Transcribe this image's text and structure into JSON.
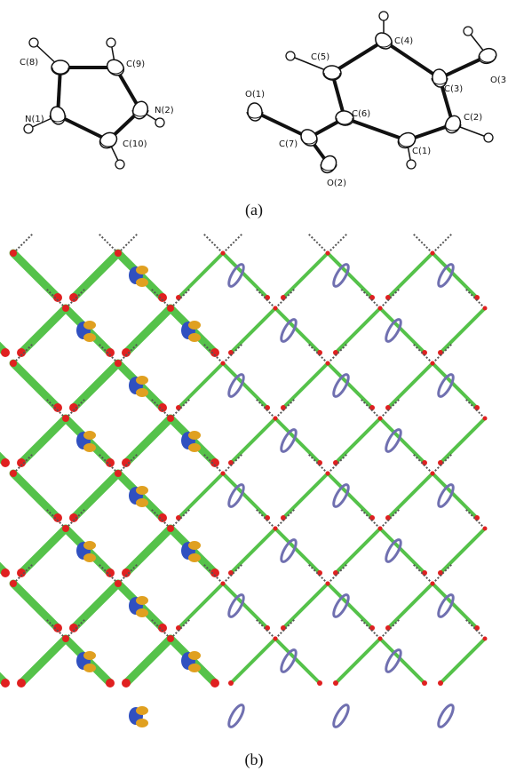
{
  "panels": [
    {
      "label": "(a)",
      "atoms": [
        "C(8)",
        "C(9)",
        "N(1)",
        "N(2)",
        "C(10)",
        "C(5)",
        "C(4)",
        "C(3)",
        "O(3",
        "O(1)",
        "C(6)",
        "C(7)",
        "O(2)",
        "C(2)",
        "C(1)"
      ]
    },
    {
      "label": "(b)"
    }
  ]
}
